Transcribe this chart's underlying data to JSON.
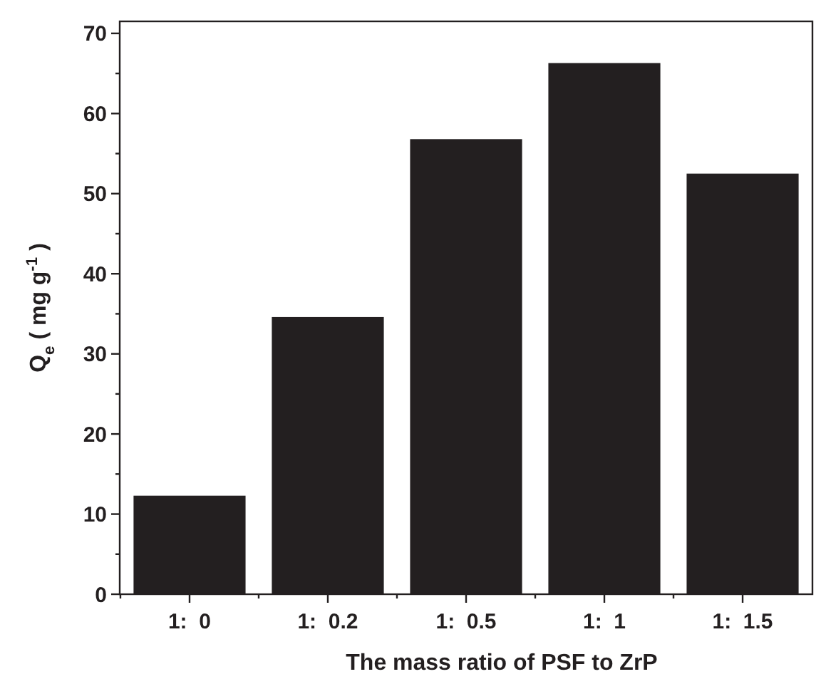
{
  "chart_data": {
    "type": "bar",
    "xlabel": "The mass ratio of PSF to ZrP",
    "ylabel": "Q$_{e}$ ( mg g$^{-1}$ )",
    "categories": [
      "1:  0",
      "1:  0.2",
      "1:  0.5",
      "1:  1",
      "1:  1.5"
    ],
    "values": [
      12.3,
      34.6,
      56.8,
      66.3,
      52.5
    ],
    "color": "#231f20",
    "ylim": [
      0,
      71.5
    ],
    "yticks": [
      0,
      {
        "value": 5,
        "label": null
      },
      10,
      {
        "value": 15,
        "label": null
      },
      20,
      {
        "value": 25,
        "label": null
      },
      30,
      {
        "value": 35,
        "label": null
      },
      40,
      {
        "value": 45,
        "label": null
      },
      50,
      {
        "value": 55,
        "label": null
      },
      60,
      {
        "value": 65,
        "label": null
      },
      70
    ],
    "grid": false
  }
}
